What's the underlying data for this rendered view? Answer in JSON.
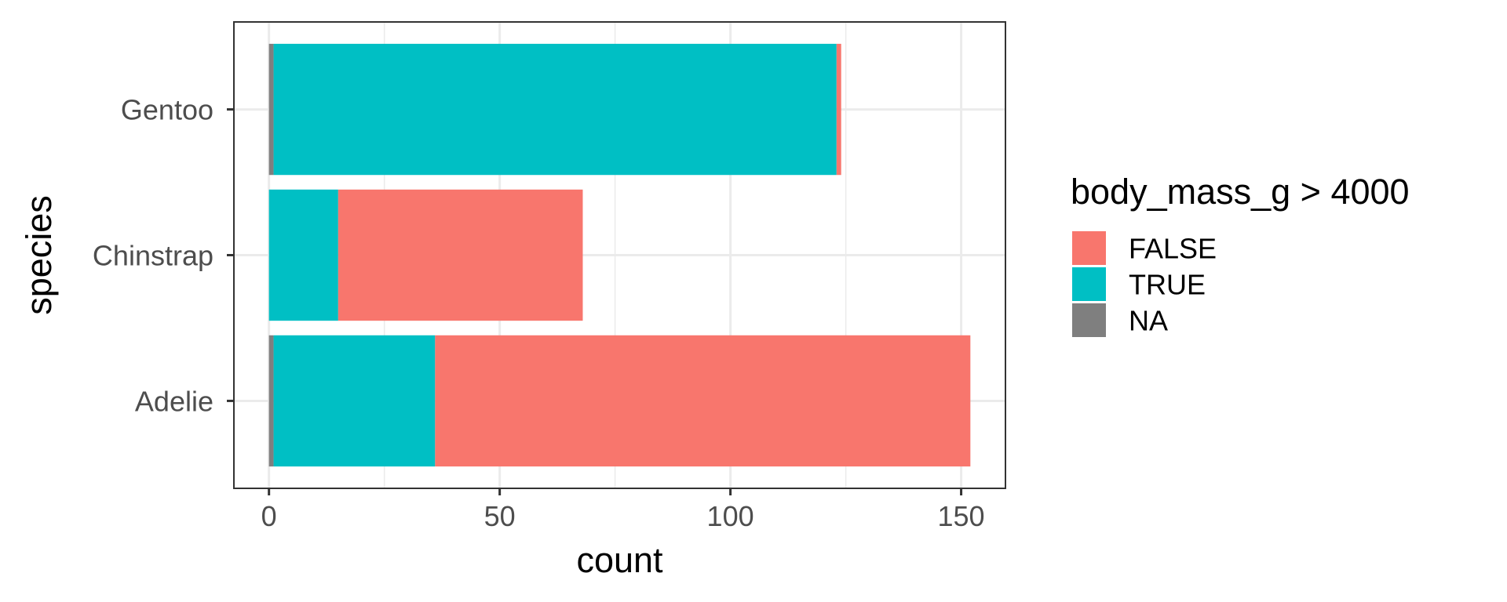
{
  "chart_data": {
    "type": "bar",
    "orientation": "horizontal",
    "stacked": true,
    "categories": [
      "Adelie",
      "Chinstrap",
      "Gentoo"
    ],
    "series": [
      {
        "name": "FALSE",
        "color": "#F8766D",
        "values": [
          116,
          53,
          1
        ]
      },
      {
        "name": "TRUE",
        "color": "#00BFC4",
        "values": [
          35,
          15,
          122
        ]
      },
      {
        "name": "NA",
        "color": "#7F7F7F",
        "values": [
          1,
          0,
          1
        ]
      }
    ],
    "stack_order": [
      "NA",
      "TRUE",
      "FALSE"
    ],
    "xlabel": "count",
    "ylabel": "species",
    "xticks": [
      0,
      50,
      100,
      150
    ],
    "xminor": [
      25,
      75,
      125
    ],
    "xlim": [
      -7.6,
      159.6
    ],
    "grid": true,
    "legend_title": "body_mass_g > 4000",
    "legend_position": "right",
    "theme": "bw"
  }
}
